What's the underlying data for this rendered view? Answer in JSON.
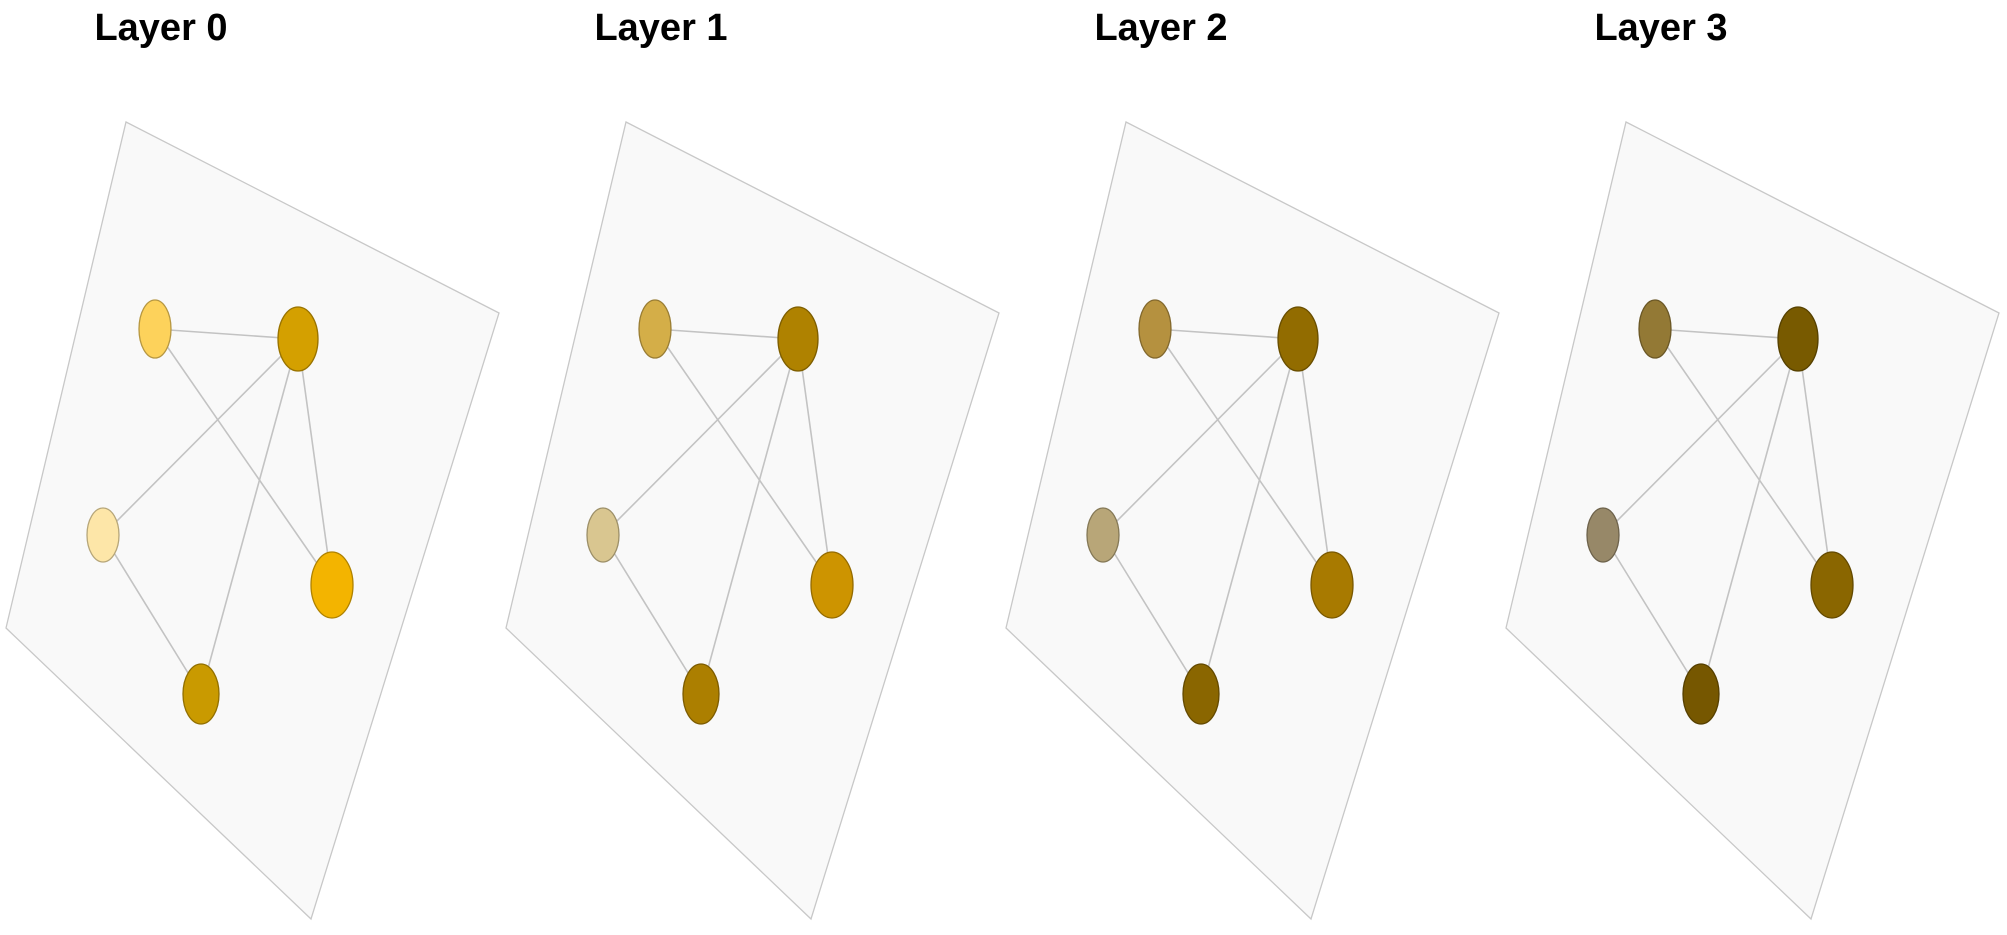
{
  "layers": [
    {
      "title": "Layer 0",
      "node_colors": [
        "#fdd25b",
        "#d4a000",
        "#fde6a8",
        "#f3b400",
        "#c99a00"
      ]
    },
    {
      "title": "Layer 1",
      "node_colors": [
        "#d4ae48",
        "#af8200",
        "#d9c690",
        "#cd9400",
        "#ac7f00"
      ]
    },
    {
      "title": "Layer 2",
      "node_colors": [
        "#b5913f",
        "#926c00",
        "#b8a678",
        "#a87a00",
        "#8a6600"
      ]
    },
    {
      "title": "Layer 3",
      "node_colors": [
        "#937935",
        "#785a00",
        "#978868",
        "#8a6600",
        "#765700"
      ]
    }
  ],
  "graph": {
    "nodes": [
      "n0",
      "n1",
      "n2",
      "n3",
      "n4"
    ],
    "edges": [
      [
        "n0",
        "n1"
      ],
      [
        "n0",
        "n3"
      ],
      [
        "n1",
        "n2"
      ],
      [
        "n1",
        "n3"
      ],
      [
        "n1",
        "n4"
      ],
      [
        "n2",
        "n4"
      ]
    ]
  }
}
